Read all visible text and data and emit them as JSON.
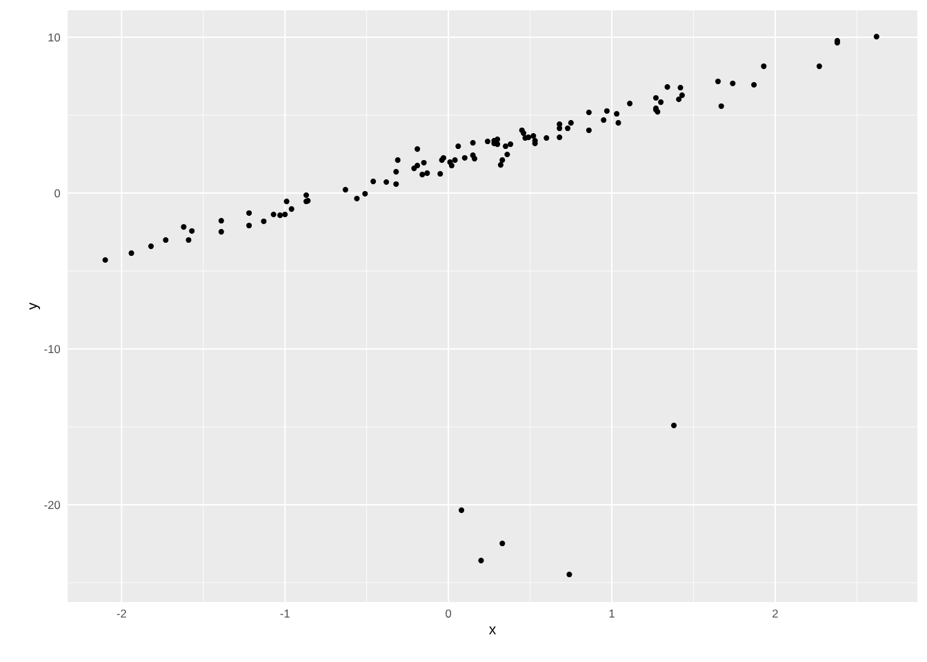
{
  "chart_data": {
    "type": "scatter",
    "xlabel": "x",
    "ylabel": "y",
    "xlim": [
      -2.33,
      2.87
    ],
    "ylim": [
      -26.24,
      11.73
    ],
    "xticks": [
      -2,
      -1,
      0,
      1,
      2
    ],
    "yticks": [
      -20,
      -10,
      0,
      10
    ],
    "grid": true,
    "marker": "circle",
    "series": [
      {
        "color": "#000000",
        "x": [
          -2.1,
          -1.94,
          -1.82,
          -1.73,
          -1.62,
          -1.59,
          -1.57,
          -1.39,
          -1.39,
          -1.22,
          -1.22,
          -1.13,
          -1.07,
          -1.03,
          -1.0,
          -0.99,
          -0.96,
          -0.87,
          -0.87,
          -0.86,
          -0.63,
          -0.56,
          -0.51,
          -0.46,
          -0.38,
          -0.32,
          -0.32,
          -0.31,
          -0.21,
          -0.19,
          -0.19,
          -0.16,
          -0.15,
          -0.13,
          -0.05,
          -0.04,
          -0.03,
          0.01,
          0.02,
          0.04,
          0.06,
          0.1,
          0.15,
          0.15,
          0.16,
          0.24,
          0.28,
          0.28,
          0.3,
          0.3,
          0.32,
          0.33,
          0.35,
          0.36,
          0.38,
          0.45,
          0.46,
          0.47,
          0.49,
          0.52,
          0.53,
          0.53,
          0.6,
          0.68,
          0.68,
          0.68,
          0.73,
          0.75,
          0.86,
          0.86,
          0.95,
          0.97,
          1.03,
          1.04,
          1.11,
          1.27,
          1.27,
          1.27,
          1.28,
          1.3,
          1.34,
          1.41,
          1.42,
          1.43,
          1.65,
          1.67,
          1.74,
          1.87,
          1.93,
          2.27,
          2.38,
          2.38,
          2.62,
          0.08,
          0.2,
          0.33,
          0.74,
          1.38
        ],
        "values": [
          -4.29,
          -3.85,
          -3.41,
          -3.01,
          -2.17,
          -3.01,
          -2.43,
          -1.77,
          -2.48,
          -1.28,
          -2.08,
          -1.81,
          -1.37,
          -1.42,
          -1.37,
          -0.53,
          -1.02,
          -0.13,
          -0.53,
          -0.49,
          0.22,
          -0.35,
          -0.04,
          0.75,
          0.71,
          1.37,
          0.58,
          2.12,
          1.59,
          2.83,
          1.77,
          1.19,
          1.95,
          1.28,
          1.24,
          2.12,
          2.26,
          1.99,
          1.77,
          2.12,
          3.01,
          2.26,
          2.43,
          3.23,
          2.21,
          3.32,
          3.36,
          3.19,
          3.14,
          3.45,
          1.81,
          2.12,
          3.01,
          2.48,
          3.14,
          4.03,
          3.85,
          3.54,
          3.58,
          3.67,
          3.36,
          3.19,
          3.54,
          4.42,
          4.16,
          3.58,
          4.16,
          4.51,
          5.18,
          4.03,
          4.69,
          5.27,
          5.09,
          4.51,
          5.75,
          6.11,
          5.44,
          5.35,
          5.22,
          5.84,
          6.81,
          6.02,
          6.77,
          6.28,
          7.17,
          5.58,
          7.04,
          6.95,
          8.14,
          8.14,
          9.65,
          9.78,
          10.04,
          -20.35,
          -23.58,
          -22.48,
          -24.47,
          -14.91
        ]
      }
    ]
  }
}
